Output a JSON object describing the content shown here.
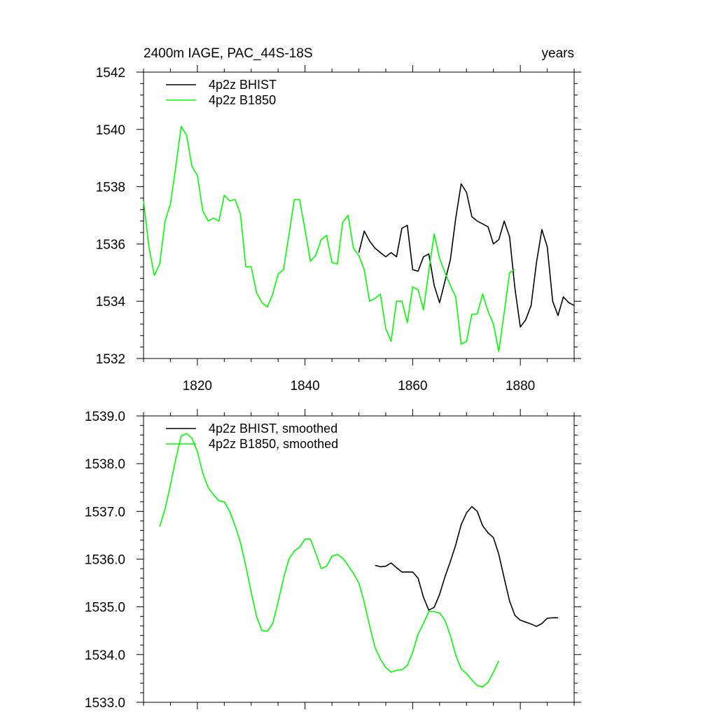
{
  "colors": {
    "bhist": "#000000",
    "b1850": "#00ff00",
    "axis": "#000000",
    "background": "#ffffff"
  },
  "chart_data": [
    {
      "type": "line",
      "title": "2400m IAGE, PAC_44S-18S",
      "title_right": "years",
      "xlim": [
        1810,
        1890
      ],
      "ylim": [
        1532,
        1542
      ],
      "x_ticks": [
        1820,
        1840,
        1860,
        1880
      ],
      "x_tick_labels": [
        "1820",
        "1840",
        "1860",
        "1880"
      ],
      "y_ticks": [
        1532,
        1534,
        1536,
        1538,
        1540,
        1542
      ],
      "y_tick_labels": [
        "1532",
        "1534",
        "1536",
        "1538",
        "1540",
        "1542"
      ],
      "legend_position": "top-left",
      "series": [
        {
          "name": "4p2z BHIST",
          "color": "#000000",
          "x": [
            1850,
            1851,
            1852,
            1853,
            1854,
            1855,
            1856,
            1857,
            1858,
            1859,
            1860,
            1861,
            1862,
            1863,
            1864,
            1865,
            1866,
            1867,
            1868,
            1869,
            1870,
            1871,
            1872,
            1873,
            1874,
            1875,
            1876,
            1877,
            1878,
            1879,
            1880,
            1881,
            1882,
            1883,
            1884,
            1885,
            1886,
            1887,
            1888,
            1889,
            1890
          ],
          "y": [
            1535.7,
            1536.45,
            1536.1,
            1535.85,
            1535.7,
            1535.55,
            1535.7,
            1535.55,
            1536.55,
            1536.65,
            1535.1,
            1535.05,
            1535.55,
            1535.65,
            1534.55,
            1533.95,
            1534.7,
            1535.45,
            1536.9,
            1538.1,
            1537.8,
            1536.95,
            1536.8,
            1536.7,
            1536.6,
            1536.0,
            1536.15,
            1536.8,
            1536.25,
            1534.45,
            1533.1,
            1533.35,
            1533.85,
            1535.35,
            1536.5,
            1535.9,
            1534.0,
            1533.5,
            1534.15,
            1533.95,
            1533.85
          ]
        },
        {
          "name": "4p2z B1850",
          "color": "#00ff00",
          "x": [
            1810,
            1811,
            1812,
            1813,
            1814,
            1815,
            1816,
            1817,
            1818,
            1819,
            1820,
            1821,
            1822,
            1823,
            1824,
            1825,
            1826,
            1827,
            1828,
            1829,
            1830,
            1831,
            1832,
            1833,
            1834,
            1835,
            1836,
            1837,
            1838,
            1839,
            1840,
            1841,
            1842,
            1843,
            1844,
            1845,
            1846,
            1847,
            1848,
            1849,
            1850,
            1851,
            1852,
            1853,
            1854,
            1855,
            1856,
            1857,
            1858,
            1859,
            1860,
            1861,
            1862,
            1863,
            1864,
            1865,
            1866,
            1867,
            1868,
            1869,
            1870,
            1871,
            1872,
            1873,
            1874,
            1875,
            1876,
            1877,
            1878,
            1879
          ],
          "y": [
            1537.5,
            1535.9,
            1534.9,
            1535.3,
            1536.8,
            1537.4,
            1538.7,
            1540.1,
            1539.8,
            1538.7,
            1538.4,
            1537.15,
            1536.8,
            1536.9,
            1536.8,
            1537.7,
            1537.5,
            1537.55,
            1537.05,
            1535.2,
            1535.2,
            1534.3,
            1533.95,
            1533.8,
            1534.25,
            1534.95,
            1535.1,
            1536.3,
            1537.55,
            1537.55,
            1536.5,
            1535.4,
            1535.6,
            1536.15,
            1536.3,
            1535.35,
            1535.3,
            1536.75,
            1537.0,
            1535.85,
            1535.6,
            1535.1,
            1534.0,
            1534.1,
            1534.25,
            1533.05,
            1532.6,
            1534.0,
            1534.0,
            1533.25,
            1534.5,
            1534.4,
            1533.7,
            1535.05,
            1536.35,
            1535.5,
            1535.0,
            1534.55,
            1534.15,
            1532.5,
            1532.6,
            1533.55,
            1533.55,
            1534.25,
            1533.65,
            1533.2,
            1532.25,
            1533.6,
            1535.0,
            1535.1
          ]
        }
      ]
    },
    {
      "type": "line",
      "xlim": [
        1810,
        1890
      ],
      "ylim": [
        1533.0,
        1539.0
      ],
      "x_ticks": [
        1820,
        1840,
        1860,
        1880
      ],
      "y_ticks": [
        1533.0,
        1534.0,
        1535.0,
        1536.0,
        1537.0,
        1538.0,
        1539.0
      ],
      "y_tick_labels": [
        "1533.0",
        "1534.0",
        "1535.0",
        "1536.0",
        "1537.0",
        "1538.0",
        "1539.0"
      ],
      "legend_position": "top-left",
      "series": [
        {
          "name": "4p2z BHIST, smoothed",
          "color": "#000000",
          "x": [
            1853,
            1854,
            1855,
            1856,
            1857,
            1858,
            1859,
            1860,
            1861,
            1862,
            1863,
            1864,
            1865,
            1866,
            1867,
            1868,
            1869,
            1870,
            1871,
            1872,
            1873,
            1874,
            1875,
            1876,
            1877,
            1878,
            1879,
            1880,
            1881,
            1882,
            1883,
            1884,
            1885,
            1886,
            1887
          ],
          "y": [
            1535.87,
            1535.84,
            1535.85,
            1535.92,
            1535.82,
            1535.73,
            1535.73,
            1535.73,
            1535.6,
            1535.2,
            1534.93,
            1534.99,
            1535.26,
            1535.63,
            1535.95,
            1536.3,
            1536.72,
            1536.97,
            1537.1,
            1537.0,
            1536.7,
            1536.55,
            1536.45,
            1536.1,
            1535.6,
            1535.12,
            1534.82,
            1534.72,
            1534.68,
            1534.64,
            1534.59,
            1534.65,
            1534.76,
            1534.77,
            1534.77
          ]
        },
        {
          "name": "4p2z B1850, smoothed",
          "color": "#00ff00",
          "x": [
            1813,
            1814,
            1815,
            1816,
            1817,
            1818,
            1819,
            1820,
            1821,
            1822,
            1823,
            1824,
            1825,
            1826,
            1827,
            1828,
            1829,
            1830,
            1831,
            1832,
            1833,
            1834,
            1835,
            1836,
            1837,
            1838,
            1839,
            1840,
            1841,
            1842,
            1843,
            1844,
            1845,
            1846,
            1847,
            1848,
            1849,
            1850,
            1851,
            1852,
            1853,
            1854,
            1855,
            1856,
            1857,
            1858,
            1859,
            1860,
            1861,
            1862,
            1863,
            1864,
            1865,
            1866,
            1867,
            1868,
            1869,
            1870,
            1871,
            1872,
            1873,
            1874,
            1875,
            1876
          ],
          "y": [
            1536.68,
            1537.05,
            1537.55,
            1538.1,
            1538.58,
            1538.63,
            1538.53,
            1538.25,
            1537.8,
            1537.5,
            1537.35,
            1537.22,
            1537.2,
            1537.0,
            1536.7,
            1536.35,
            1535.85,
            1535.3,
            1534.8,
            1534.5,
            1534.49,
            1534.65,
            1535.1,
            1535.6,
            1536.0,
            1536.17,
            1536.25,
            1536.42,
            1536.42,
            1536.12,
            1535.8,
            1535.85,
            1536.06,
            1536.1,
            1536.02,
            1535.87,
            1535.7,
            1535.5,
            1535.1,
            1534.6,
            1534.15,
            1533.9,
            1533.73,
            1533.63,
            1533.67,
            1533.68,
            1533.77,
            1534.05,
            1534.43,
            1534.65,
            1534.9,
            1534.9,
            1534.87,
            1534.72,
            1534.4,
            1533.99,
            1533.7,
            1533.6,
            1533.47,
            1533.35,
            1533.32,
            1533.42,
            1533.63,
            1533.87
          ]
        }
      ]
    }
  ]
}
